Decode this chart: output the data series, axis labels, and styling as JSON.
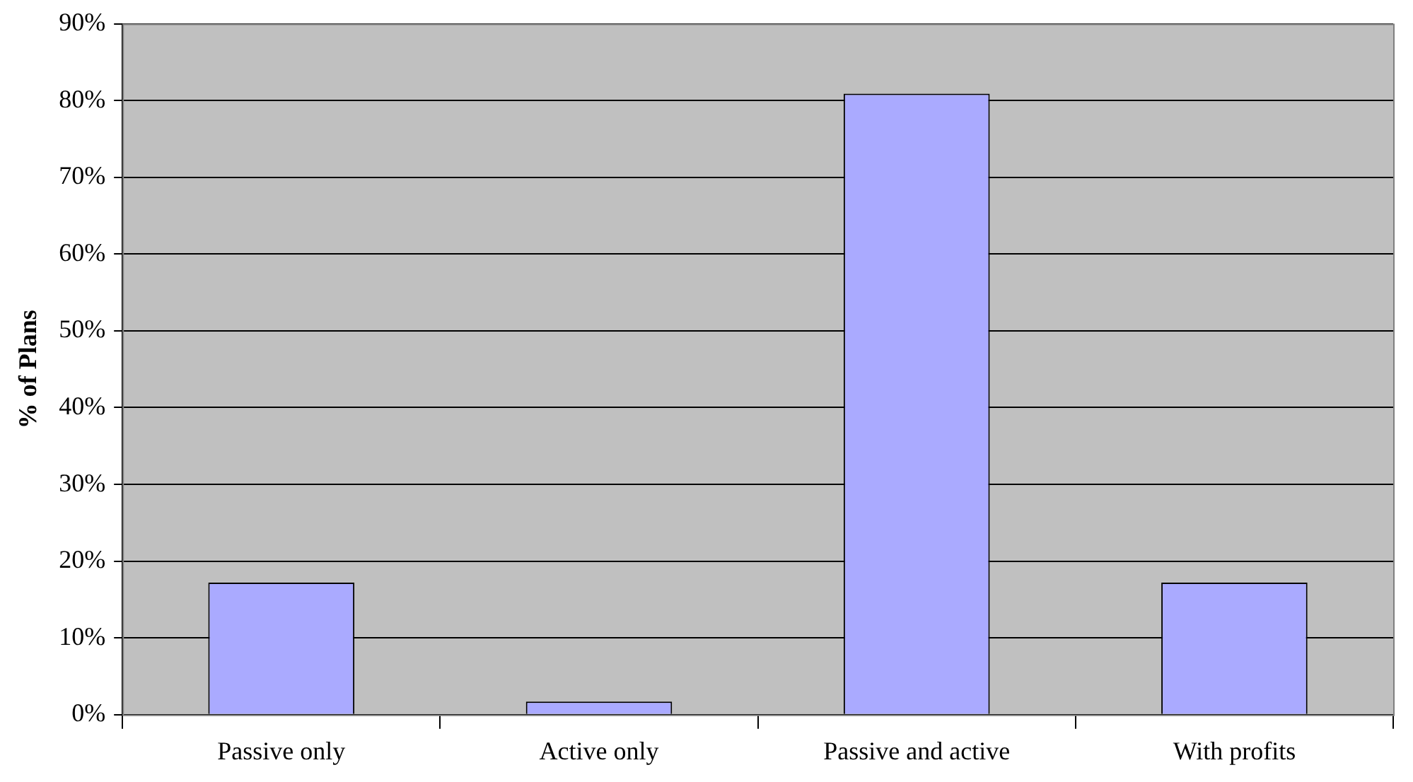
{
  "chart_data": {
    "type": "bar",
    "ylabel": "% of Plans",
    "categories": [
      "Passive only",
      "Active only",
      "Passive and active",
      "With profits"
    ],
    "values": [
      17.2,
      1.7,
      80.9,
      17.2
    ],
    "color": "#aaaaff",
    "ylim": [
      0,
      90
    ],
    "yticks": [
      {
        "value": 0,
        "label": "0%"
      },
      {
        "value": 10,
        "label": "10%"
      },
      {
        "value": 20,
        "label": "20%"
      },
      {
        "value": 30,
        "label": "30%"
      },
      {
        "value": 40,
        "label": "40%"
      },
      {
        "value": 50,
        "label": "50%"
      },
      {
        "value": 60,
        "label": "60%"
      },
      {
        "value": 70,
        "label": "70%"
      },
      {
        "value": 80,
        "label": "80%"
      },
      {
        "value": 90,
        "label": "90%"
      }
    ],
    "grid": "y",
    "legend": false
  }
}
